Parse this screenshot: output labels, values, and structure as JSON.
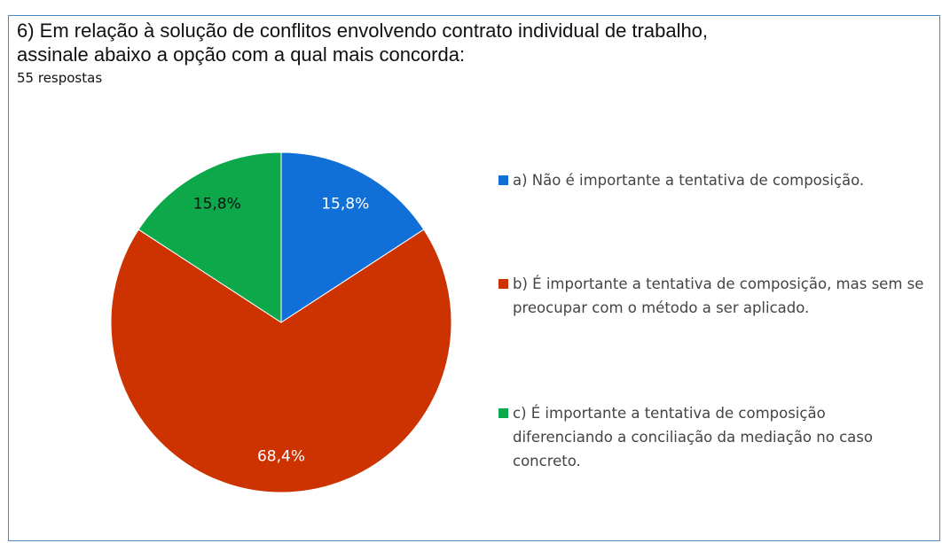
{
  "chart_data": {
    "type": "pie",
    "title": "6) Em relação à solução de conflitos envolvendo contrato individual de trabalho, assinale abaixo a opção com a qual mais concorda:",
    "subtitle": "55 respostas",
    "categories": [
      "a) Não é importante a tentativa de composição.",
      "b) É importante a tentativa de composição, mas sem se preocupar com o método a ser aplicado.",
      "c) É importante a tentativa de composição diferenciando a conciliação da mediação no caso concreto."
    ],
    "values": [
      15.8,
      68.4,
      15.8
    ],
    "value_labels": [
      "15,8%",
      "68,4%",
      "15,8%"
    ],
    "colors": [
      "#1170d8",
      "#cc3300",
      "#0ca84a"
    ],
    "legend": "right"
  }
}
